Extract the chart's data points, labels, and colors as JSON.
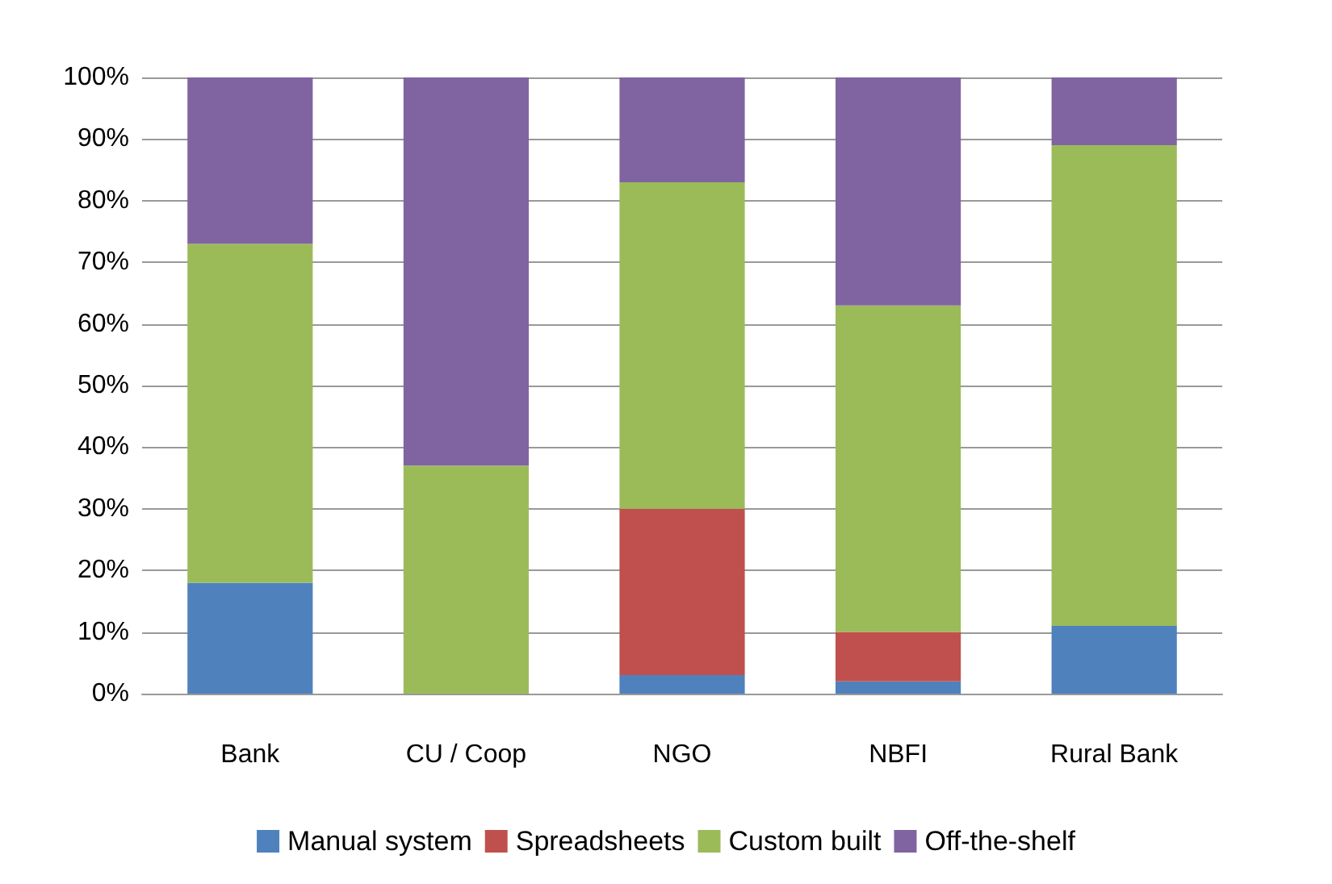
{
  "chart_data": {
    "type": "bar",
    "stacked": true,
    "categories": [
      "Bank",
      "CU / Coop",
      "NGO",
      "NBFI",
      "Rural Bank"
    ],
    "series": [
      {
        "name": "Manual system",
        "color": "#4f81bd",
        "values": [
          18,
          0,
          3,
          2,
          11
        ]
      },
      {
        "name": "Spreadsheets",
        "color": "#c0504d",
        "values": [
          0,
          0,
          27,
          8,
          0
        ]
      },
      {
        "name": "Custom built",
        "color": "#9bbb59",
        "values": [
          55,
          37,
          53,
          53,
          78
        ]
      },
      {
        "name": "Off-the-shelf",
        "color": "#8064a2",
        "values": [
          27,
          63,
          17,
          37,
          11
        ]
      }
    ],
    "ylim": [
      0,
      100
    ],
    "yticks": [
      {
        "value": 0,
        "label": "0%"
      },
      {
        "value": 10,
        "label": "10%"
      },
      {
        "value": 20,
        "label": "20%"
      },
      {
        "value": 30,
        "label": "30%"
      },
      {
        "value": 40,
        "label": "40%"
      },
      {
        "value": 50,
        "label": "50%"
      },
      {
        "value": 60,
        "label": "60%"
      },
      {
        "value": 70,
        "label": "70%"
      },
      {
        "value": 80,
        "label": "80%"
      },
      {
        "value": 90,
        "label": "90%"
      },
      {
        "value": 100,
        "label": "100%"
      }
    ],
    "grid": "y",
    "legend": "bottom"
  }
}
